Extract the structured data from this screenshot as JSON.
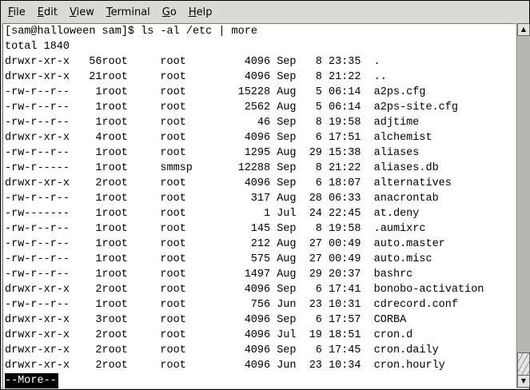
{
  "menubar": {
    "items": [
      {
        "label": "File",
        "mnemonic": "F",
        "rest": "ile"
      },
      {
        "label": "Edit",
        "mnemonic": "E",
        "rest": "dit"
      },
      {
        "label": "View",
        "mnemonic": "V",
        "rest": "iew"
      },
      {
        "label": "Terminal",
        "mnemonic": "T",
        "rest": "erminal"
      },
      {
        "label": "Go",
        "mnemonic": "G",
        "rest": "o"
      },
      {
        "label": "Help",
        "mnemonic": "H",
        "rest": "elp"
      }
    ]
  },
  "terminal": {
    "prompt": "[sam@halloween sam]$ ls -al /etc | more",
    "total": "total 1840",
    "rows": [
      [
        "drwxr-xr-x",
        "56",
        "root",
        "root",
        "4096",
        "Sep",
        "8",
        "23:35",
        "."
      ],
      [
        "drwxr-xr-x",
        "21",
        "root",
        "root",
        "4096",
        "Sep",
        "8",
        "21:22",
        ".."
      ],
      [
        "-rw-r--r--",
        "1",
        "root",
        "root",
        "15228",
        "Aug",
        "5",
        "06:14",
        "a2ps.cfg"
      ],
      [
        "-rw-r--r--",
        "1",
        "root",
        "root",
        "2562",
        "Aug",
        "5",
        "06:14",
        "a2ps-site.cfg"
      ],
      [
        "-rw-r--r--",
        "1",
        "root",
        "root",
        "46",
        "Sep",
        "8",
        "19:58",
        "adjtime"
      ],
      [
        "drwxr-xr-x",
        "4",
        "root",
        "root",
        "4096",
        "Sep",
        "6",
        "17:51",
        "alchemist"
      ],
      [
        "-rw-r--r--",
        "1",
        "root",
        "root",
        "1295",
        "Aug",
        "29",
        "15:38",
        "aliases"
      ],
      [
        "-rw-r-----",
        "1",
        "root",
        "smmsp",
        "12288",
        "Sep",
        "8",
        "21:22",
        "aliases.db"
      ],
      [
        "drwxr-xr-x",
        "2",
        "root",
        "root",
        "4096",
        "Sep",
        "6",
        "18:07",
        "alternatives"
      ],
      [
        "-rw-r--r--",
        "1",
        "root",
        "root",
        "317",
        "Aug",
        "28",
        "06:33",
        "anacrontab"
      ],
      [
        "-rw-------",
        "1",
        "root",
        "root",
        "1",
        "Jul",
        "24",
        "22:45",
        "at.deny"
      ],
      [
        "-rw-r--r--",
        "1",
        "root",
        "root",
        "145",
        "Sep",
        "8",
        "19:58",
        ".aumixrc"
      ],
      [
        "-rw-r--r--",
        "1",
        "root",
        "root",
        "212",
        "Aug",
        "27",
        "00:49",
        "auto.master"
      ],
      [
        "-rw-r--r--",
        "1",
        "root",
        "root",
        "575",
        "Aug",
        "27",
        "00:49",
        "auto.misc"
      ],
      [
        "-rw-r--r--",
        "1",
        "root",
        "root",
        "1497",
        "Aug",
        "29",
        "20:37",
        "bashrc"
      ],
      [
        "drwxr-xr-x",
        "2",
        "root",
        "root",
        "4096",
        "Sep",
        "6",
        "17:41",
        "bonobo-activation"
      ],
      [
        "-rw-r--r--",
        "1",
        "root",
        "root",
        "756",
        "Jun",
        "23",
        "10:31",
        "cdrecord.conf"
      ],
      [
        "drwxr-xr-x",
        "3",
        "root",
        "root",
        "4096",
        "Sep",
        "6",
        "17:57",
        "CORBA"
      ],
      [
        "drwxr-xr-x",
        "2",
        "root",
        "root",
        "4096",
        "Jul",
        "19",
        "18:51",
        "cron.d"
      ],
      [
        "drwxr-xr-x",
        "2",
        "root",
        "root",
        "4096",
        "Sep",
        "6",
        "17:45",
        "cron.daily"
      ],
      [
        "drwxr-xr-x",
        "2",
        "root",
        "root",
        "4096",
        "Jun",
        "23",
        "10:34",
        "cron.hourly"
      ]
    ],
    "pager": "--More--"
  },
  "scrollbar": {
    "position_percent": 100,
    "up_icon": "arrow-up-icon",
    "down_icon": "arrow-down-icon"
  }
}
